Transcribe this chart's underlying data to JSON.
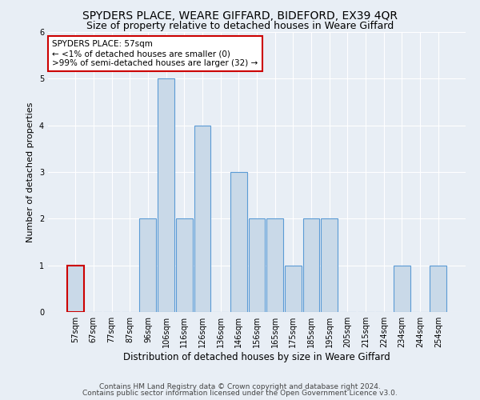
{
  "title1": "SPYDERS PLACE, WEARE GIFFARD, BIDEFORD, EX39 4QR",
  "title2": "Size of property relative to detached houses in Weare Giffard",
  "xlabel": "Distribution of detached houses by size in Weare Giffard",
  "ylabel": "Number of detached properties",
  "footer1": "Contains HM Land Registry data © Crown copyright and database right 2024.",
  "footer2": "Contains public sector information licensed under the Open Government Licence v3.0.",
  "categories": [
    "57sqm",
    "67sqm",
    "77sqm",
    "87sqm",
    "96sqm",
    "106sqm",
    "116sqm",
    "126sqm",
    "136sqm",
    "146sqm",
    "156sqm",
    "165sqm",
    "175sqm",
    "185sqm",
    "195sqm",
    "205sqm",
    "215sqm",
    "224sqm",
    "234sqm",
    "244sqm",
    "254sqm"
  ],
  "values": [
    1,
    0,
    0,
    0,
    2,
    5,
    2,
    4,
    0,
    3,
    2,
    2,
    1,
    2,
    2,
    0,
    0,
    0,
    1,
    0,
    1
  ],
  "bar_color": "#c9d9e8",
  "bar_edge_color": "#5b9bd5",
  "highlight_index": 0,
  "highlight_bar_edge_color": "#cc0000",
  "annotation_text": "SPYDERS PLACE: 57sqm\n← <1% of detached houses are smaller (0)\n>99% of semi-detached houses are larger (32) →",
  "annotation_box_color": "white",
  "annotation_box_edge_color": "#cc0000",
  "ylim": [
    0,
    6
  ],
  "yticks": [
    0,
    1,
    2,
    3,
    4,
    5,
    6
  ],
  "background_color": "#e8eef5",
  "grid_color": "white",
  "title1_fontsize": 10,
  "title2_fontsize": 9,
  "xlabel_fontsize": 8.5,
  "ylabel_fontsize": 8,
  "tick_fontsize": 7,
  "annotation_fontsize": 7.5,
  "footer_fontsize": 6.5
}
